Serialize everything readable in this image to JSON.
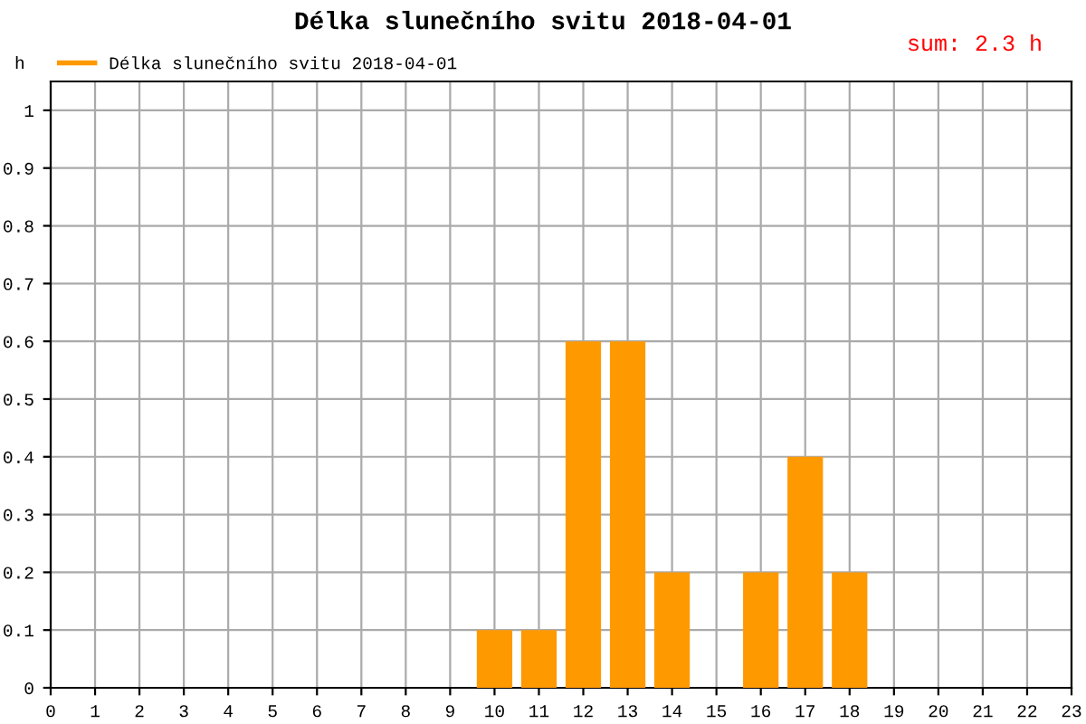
{
  "chart_data": {
    "type": "bar",
    "title": "Délka slunečního svitu 2018-04-01",
    "ylabel": "h",
    "x": [
      10,
      11,
      12,
      13,
      14,
      16,
      17,
      18
    ],
    "series": [
      {
        "name": "Délka slunečního svitu 2018-04-01",
        "color": "#ff9900",
        "values": [
          0.1,
          0.1,
          0.6,
          0.6,
          0.2,
          0.2,
          0.4,
          0.2
        ]
      }
    ],
    "xlim": [
      0,
      23
    ],
    "xticks": [
      0,
      1,
      2,
      3,
      4,
      5,
      6,
      7,
      8,
      9,
      10,
      11,
      12,
      13,
      14,
      15,
      16,
      17,
      18,
      19,
      20,
      21,
      22,
      23
    ],
    "ylim": [
      0,
      1.05
    ],
    "yticks": [
      0,
      0.1,
      0.2,
      0.3,
      0.4,
      0.5,
      0.6,
      0.7,
      0.8,
      0.9,
      1
    ],
    "grid": true,
    "legend": "top left",
    "annotations": [
      "sum: 2.3 h"
    ]
  }
}
